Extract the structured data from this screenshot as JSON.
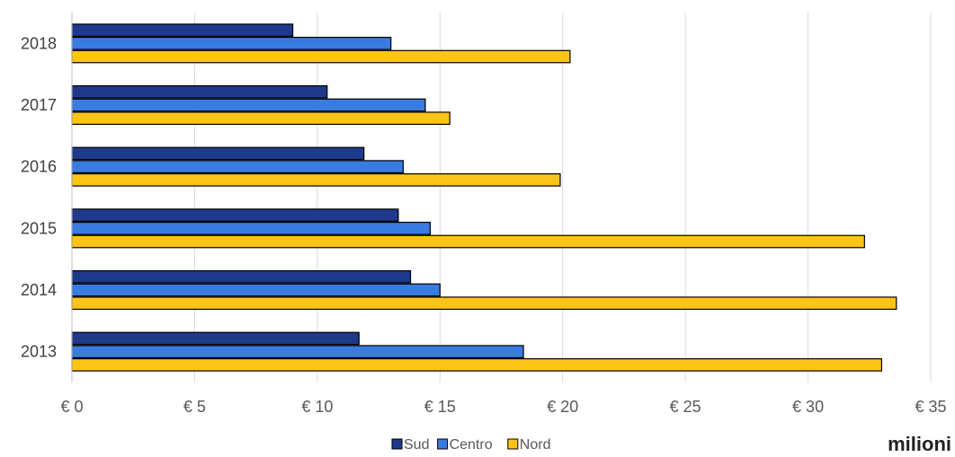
{
  "chart_data": {
    "type": "bar",
    "orientation": "horizontal",
    "categories": [
      "2013",
      "2014",
      "2015",
      "2016",
      "2017",
      "2018"
    ],
    "series": [
      {
        "name": "Sud",
        "color": "#1f3a8a",
        "values": [
          11.7,
          13.8,
          13.3,
          11.9,
          10.4,
          9.0
        ]
      },
      {
        "name": "Centro",
        "color": "#3a7be0",
        "values": [
          18.4,
          15.0,
          14.6,
          13.5,
          14.4,
          13.0
        ]
      },
      {
        "name": "Nord",
        "color": "#fcc419",
        "values": [
          33.0,
          33.6,
          32.3,
          19.9,
          15.4,
          20.3
        ]
      }
    ],
    "xlim": [
      0,
      35
    ],
    "x_ticks": [
      0,
      5,
      10,
      15,
      20,
      25,
      30,
      35
    ],
    "tick_prefix": "€ ",
    "unit_label": "milioni",
    "grid": true,
    "legend_position": "bottom"
  }
}
